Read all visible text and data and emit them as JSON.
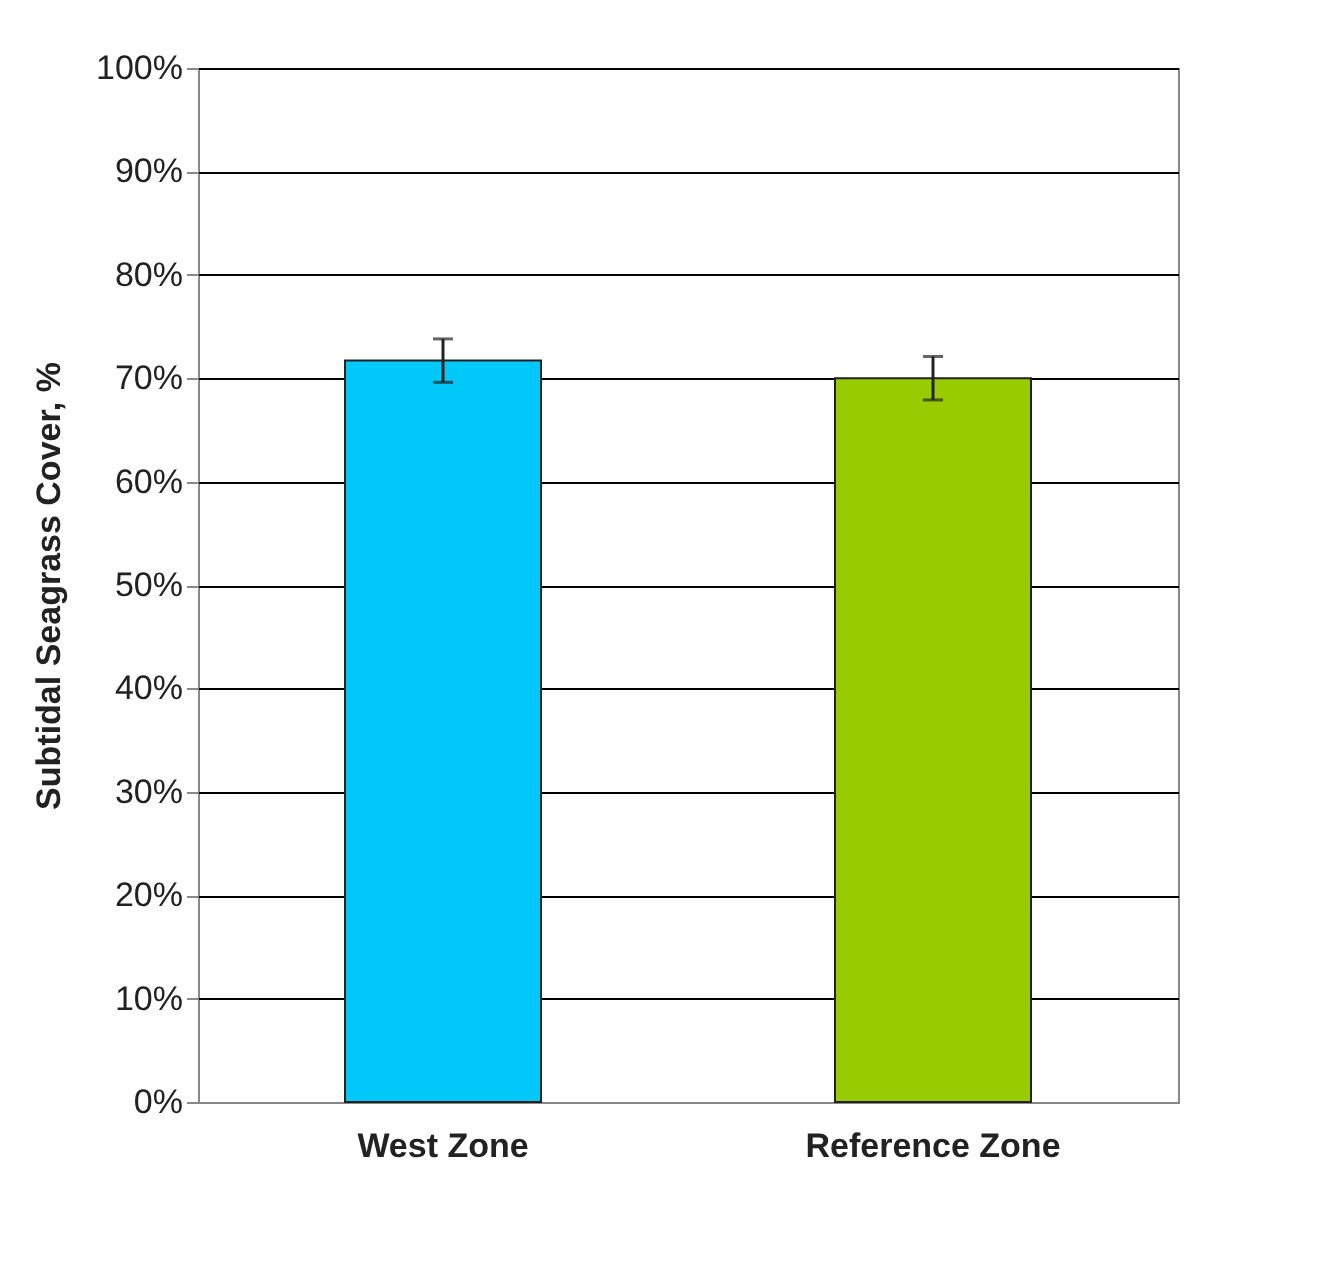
{
  "chart_data": {
    "type": "bar",
    "ylabel": "Subtidal Seagrass Cover, %",
    "categories": [
      "West Zone",
      "Reference Zone"
    ],
    "values": [
      71.7,
      70.0
    ],
    "colors": [
      "#00c8f8",
      "#99cc00"
    ],
    "errors": [
      2.1,
      2.1
    ],
    "ylim": [
      0,
      100
    ],
    "yticks": [
      {
        "value": 0,
        "label": "0%"
      },
      {
        "value": 10,
        "label": "10%"
      },
      {
        "value": 20,
        "label": "20%"
      },
      {
        "value": 30,
        "label": "30%"
      },
      {
        "value": 40,
        "label": "40%"
      },
      {
        "value": 50,
        "label": "50%"
      },
      {
        "value": 60,
        "label": "60%"
      },
      {
        "value": 70,
        "label": "70%"
      },
      {
        "value": 80,
        "label": "80%"
      },
      {
        "value": 90,
        "label": "90%"
      },
      {
        "value": 100,
        "label": "100%"
      }
    ],
    "grid": "y"
  }
}
